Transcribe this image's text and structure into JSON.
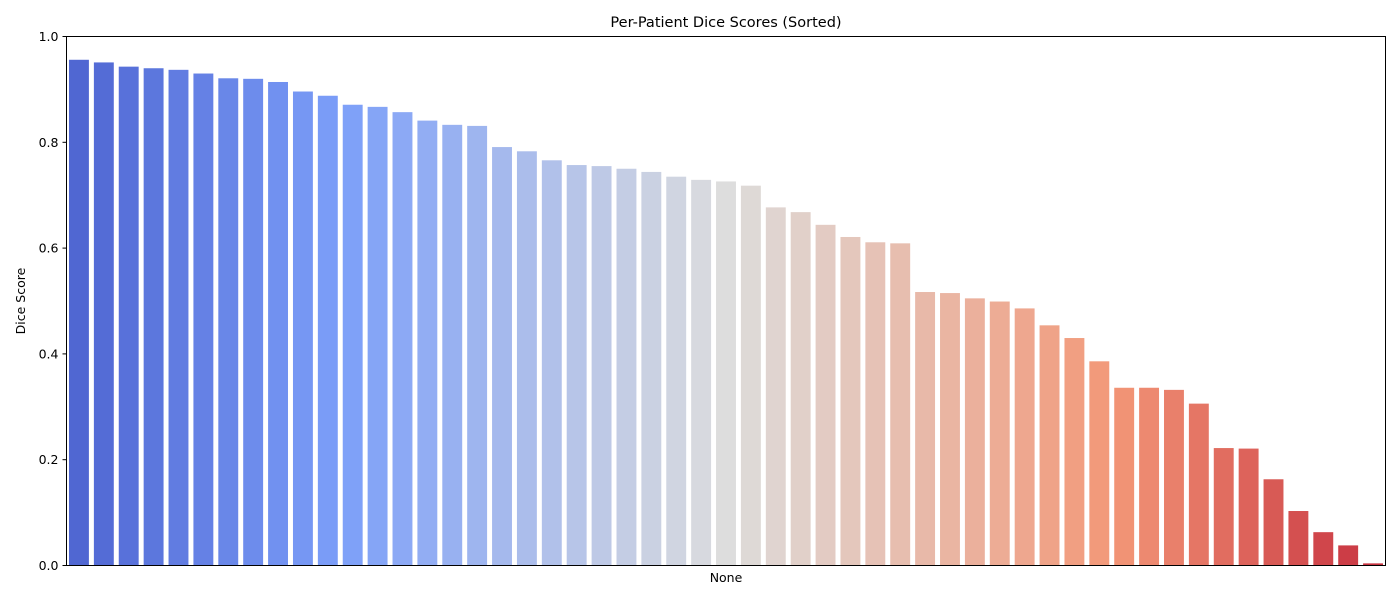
{
  "chart_data": {
    "type": "bar",
    "title": "Per-Patient Dice Scores (Sorted)",
    "xlabel": "None",
    "ylabel": "Dice Score",
    "ylim": [
      0,
      1.0
    ],
    "yticks": [
      "0.0",
      "0.2",
      "0.4",
      "0.6",
      "0.8",
      "1.0"
    ],
    "grid": false,
    "legend": "none",
    "palette": "coolwarm",
    "values": [
      0.956,
      0.951,
      0.943,
      0.94,
      0.937,
      0.93,
      0.921,
      0.92,
      0.914,
      0.896,
      0.888,
      0.871,
      0.867,
      0.857,
      0.841,
      0.833,
      0.831,
      0.791,
      0.783,
      0.766,
      0.757,
      0.755,
      0.75,
      0.744,
      0.735,
      0.729,
      0.726,
      0.718,
      0.677,
      0.668,
      0.644,
      0.621,
      0.611,
      0.609,
      0.517,
      0.515,
      0.505,
      0.499,
      0.486,
      0.454,
      0.43,
      0.386,
      0.336,
      0.336,
      0.332,
      0.306,
      0.222,
      0.221,
      0.163,
      0.103,
      0.063,
      0.038,
      0.004
    ]
  }
}
